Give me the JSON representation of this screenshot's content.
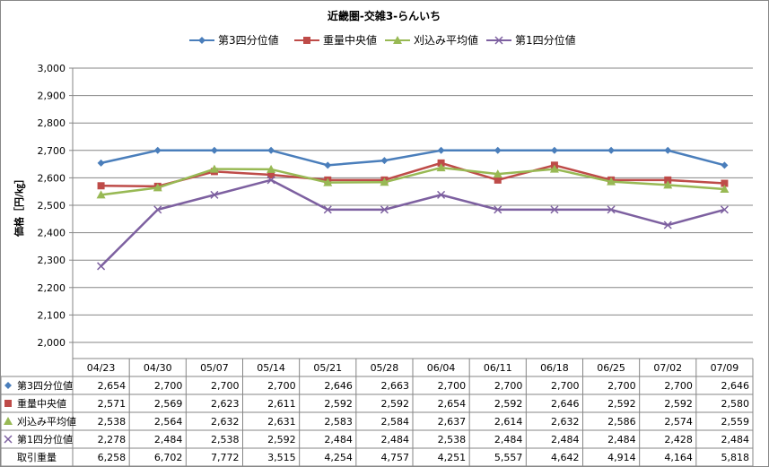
{
  "chart_data": {
    "type": "line",
    "title": "近畿圏-交雑3-らんいち",
    "ylabel": "価格［円/㎏］",
    "ylim": [
      2000,
      3000
    ],
    "yticks": [
      "2,000",
      "2,100",
      "2,200",
      "2,300",
      "2,400",
      "2,500",
      "2,600",
      "2,700",
      "2,800",
      "2,900",
      "3,000"
    ],
    "categories": [
      "04/23",
      "04/30",
      "05/07",
      "05/14",
      "05/21",
      "05/28",
      "06/04",
      "06/11",
      "06/18",
      "06/25",
      "07/02",
      "07/09"
    ],
    "grid": true,
    "legend_position": "top",
    "series": [
      {
        "name": "第3四分位値",
        "color": "#4a7ebb",
        "marker": "diamond",
        "values": [
          2654,
          2700,
          2700,
          2700,
          2646,
          2663,
          2700,
          2700,
          2700,
          2700,
          2700,
          2646
        ],
        "labels": [
          "2,654",
          "2,700",
          "2,700",
          "2,700",
          "2,646",
          "2,663",
          "2,700",
          "2,700",
          "2,700",
          "2,700",
          "2,700",
          "2,646"
        ]
      },
      {
        "name": "重量中央値",
        "color": "#be4b48",
        "marker": "square",
        "values": [
          2571,
          2569,
          2623,
          2611,
          2592,
          2592,
          2654,
          2592,
          2646,
          2592,
          2592,
          2580
        ],
        "labels": [
          "2,571",
          "2,569",
          "2,623",
          "2,611",
          "2,592",
          "2,592",
          "2,654",
          "2,592",
          "2,646",
          "2,592",
          "2,592",
          "2,580"
        ]
      },
      {
        "name": "刈込み平均値",
        "color": "#98b954",
        "marker": "triangle",
        "values": [
          2538,
          2564,
          2632,
          2631,
          2583,
          2584,
          2637,
          2614,
          2632,
          2586,
          2574,
          2559
        ],
        "labels": [
          "2,538",
          "2,564",
          "2,632",
          "2,631",
          "2,583",
          "2,584",
          "2,637",
          "2,614",
          "2,632",
          "2,586",
          "2,574",
          "2,559"
        ]
      },
      {
        "name": "第1四分位値",
        "color": "#7d60a0",
        "marker": "x",
        "values": [
          2278,
          2484,
          2538,
          2592,
          2484,
          2484,
          2538,
          2484,
          2484,
          2484,
          2428,
          2484
        ],
        "labels": [
          "2,278",
          "2,484",
          "2,538",
          "2,592",
          "2,484",
          "2,484",
          "2,538",
          "2,484",
          "2,484",
          "2,484",
          "2,428",
          "2,484"
        ]
      }
    ],
    "table_extra_row": {
      "name": "取引重量",
      "values": [
        "6,258",
        "6,702",
        "7,772",
        "3,515",
        "4,254",
        "4,757",
        "4,251",
        "5,557",
        "4,642",
        "4,914",
        "4,164",
        "5,818"
      ]
    }
  }
}
